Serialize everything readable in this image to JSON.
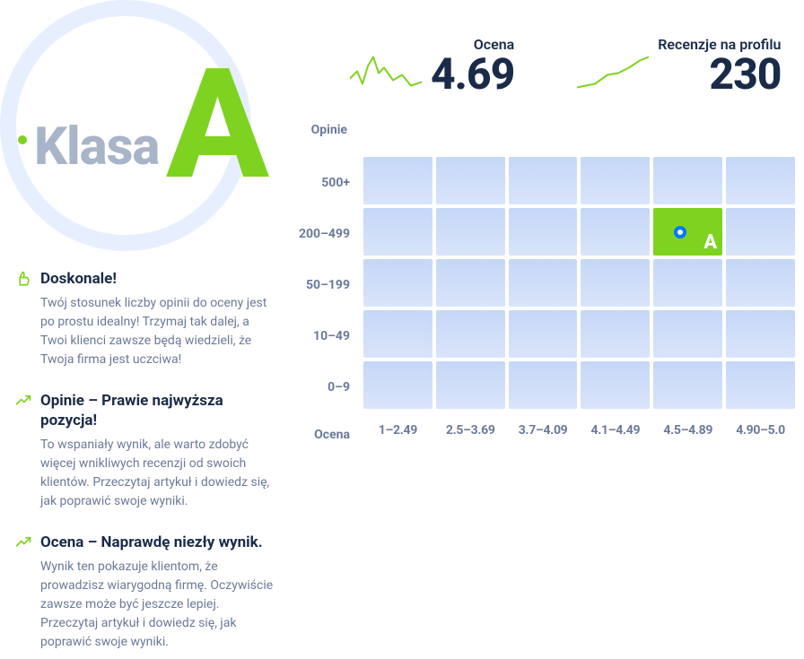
{
  "badge": {
    "label": "Klasa",
    "grade": "A",
    "ring_color": "#e7efff",
    "label_color": "#a8b4c8",
    "grade_color": "#7ed321",
    "dot_color": "#7ed321"
  },
  "info": [
    {
      "icon": "thumb-up",
      "icon_color": "#7ed321",
      "title": "Doskonale!",
      "body": "Twój stosunek liczby opinii do oceny jest po prostu idealny! Trzymaj tak dalej, a Twoi klienci zawsze będą wiedzieli, że Twoja firma jest uczciwa!"
    },
    {
      "icon": "trend-up",
      "icon_color": "#7ed321",
      "title": "Opinie – Prawie najwyższa pozycja!",
      "body": "To wspaniały wynik, ale warto zdobyć więcej wnikliwych recenzji od swoich klientów. Przeczytaj artykuł i dowiedz się, jak poprawić swoje wyniki."
    },
    {
      "icon": "trend-up",
      "icon_color": "#7ed321",
      "title": "Ocena – Naprawdę niezły wynik.",
      "body": "Wynik ten pokazuje klientom, że prowadzisz wiarygodną firmę. Oczywiście zawsze może być jeszcze lepiej. Przeczytaj artykuł i dowiedz się, jak poprawić swoje wyniki."
    }
  ],
  "stats": {
    "rating": {
      "label": "Ocena",
      "value": "4.69",
      "spark_color": "#7ed321",
      "spark_points": [
        0,
        28,
        8,
        20,
        14,
        34,
        20,
        14,
        26,
        4,
        32,
        22,
        38,
        16,
        48,
        30,
        58,
        24,
        68,
        36,
        80,
        32
      ]
    },
    "reviews": {
      "label": "Recenzje na profilu",
      "value": "230",
      "spark_color": "#7ed321",
      "spark_points": [
        0,
        38,
        20,
        34,
        34,
        24,
        46,
        22,
        58,
        16,
        70,
        8,
        80,
        4
      ]
    }
  },
  "heatmap": {
    "y_title": "Opinie",
    "x_title": "Ocena",
    "y_labels": [
      "500+",
      "200–499",
      "50–199",
      "10–49",
      "0–9"
    ],
    "x_labels": [
      "1–2.49",
      "2.5–3.69",
      "3.7–4.09",
      "4.1–4.49",
      "4.5–4.89",
      "4.90–5.0"
    ],
    "rows": 5,
    "cols": 6,
    "cell_bg_from": "#c5d7f7",
    "cell_bg_to": "#d9e4fa",
    "highlight": {
      "row": 1,
      "col": 4,
      "bg": "#7ed321",
      "letter": "A",
      "marker_ring": "#0077ff",
      "marker_fill": "#ffffff"
    }
  }
}
